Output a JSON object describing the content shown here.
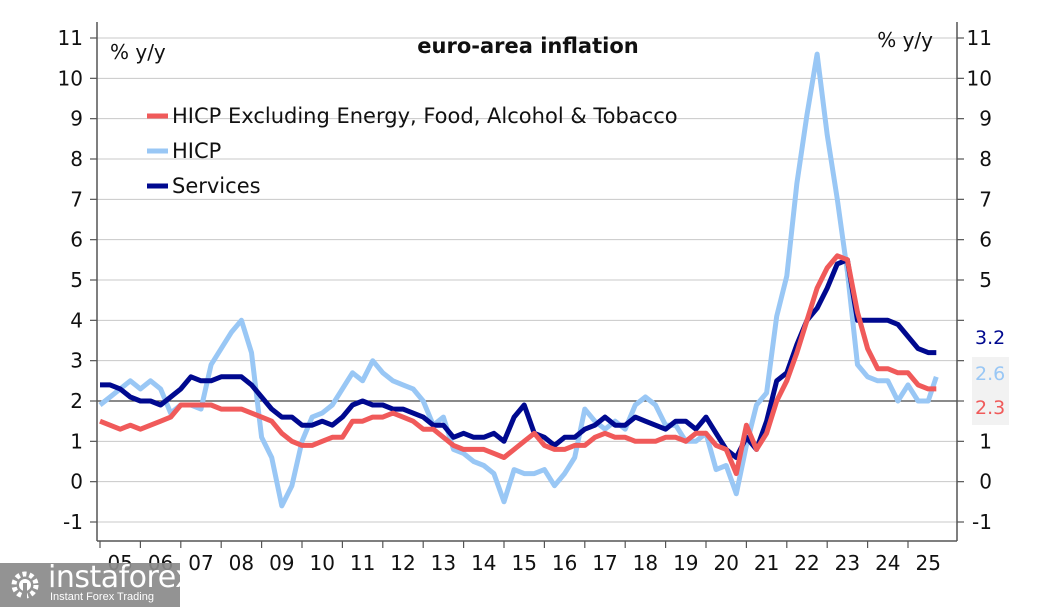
{
  "chart_data": {
    "type": "line",
    "title": "euro-area inflation",
    "ylabel_left": "% y/y",
    "ylabel_right": "% y/y",
    "ylim": [
      -1,
      11
    ],
    "yticks": [
      "-1",
      "0",
      "1",
      "2",
      "3",
      "4",
      "5",
      "6",
      "7",
      "8",
      "9",
      "10",
      "11"
    ],
    "xticks": [
      "05",
      "06",
      "07",
      "08",
      "09",
      "10",
      "11",
      "12",
      "13",
      "14",
      "15",
      "16",
      "17",
      "18",
      "19",
      "20",
      "21",
      "22",
      "23",
      "24",
      "25"
    ],
    "xrange": [
      2005.0,
      2025.75
    ],
    "reference_line": 2,
    "grid": true,
    "legend_position": "top-left",
    "series": [
      {
        "name": "HICP Excluding Energy, Food, Alcohol & Tobacco",
        "color": "#f05a5a",
        "end_label": "2.3",
        "x": [
          2005.0,
          2005.25,
          2005.5,
          2005.75,
          2006.0,
          2006.25,
          2006.5,
          2006.75,
          2007.0,
          2007.25,
          2007.5,
          2007.75,
          2008.0,
          2008.25,
          2008.5,
          2008.75,
          2009.0,
          2009.25,
          2009.5,
          2009.75,
          2010.0,
          2010.25,
          2010.5,
          2010.75,
          2011.0,
          2011.25,
          2011.5,
          2011.75,
          2012.0,
          2012.25,
          2012.5,
          2012.75,
          2013.0,
          2013.25,
          2013.5,
          2013.75,
          2014.0,
          2014.25,
          2014.5,
          2014.75,
          2015.0,
          2015.25,
          2015.5,
          2015.75,
          2016.0,
          2016.25,
          2016.5,
          2016.75,
          2017.0,
          2017.25,
          2017.5,
          2017.75,
          2018.0,
          2018.25,
          2018.5,
          2018.75,
          2019.0,
          2019.25,
          2019.5,
          2019.75,
          2020.0,
          2020.25,
          2020.5,
          2020.75,
          2021.0,
          2021.25,
          2021.5,
          2021.75,
          2022.0,
          2022.25,
          2022.5,
          2022.75,
          2023.0,
          2023.25,
          2023.5,
          2023.75,
          2024.0,
          2024.25,
          2024.5,
          2024.75,
          2025.0,
          2025.25,
          2025.5,
          2025.7
        ],
        "values": [
          1.5,
          1.4,
          1.3,
          1.4,
          1.3,
          1.4,
          1.5,
          1.6,
          1.9,
          1.9,
          1.9,
          1.9,
          1.8,
          1.8,
          1.8,
          1.7,
          1.6,
          1.5,
          1.2,
          1.0,
          0.9,
          0.9,
          1.0,
          1.1,
          1.1,
          1.5,
          1.5,
          1.6,
          1.6,
          1.7,
          1.6,
          1.5,
          1.3,
          1.3,
          1.1,
          0.9,
          0.8,
          0.8,
          0.8,
          0.7,
          0.6,
          0.8,
          1.0,
          1.2,
          0.9,
          0.8,
          0.8,
          0.9,
          0.9,
          1.1,
          1.2,
          1.1,
          1.1,
          1.0,
          1.0,
          1.0,
          1.1,
          1.1,
          1.0,
          1.2,
          1.2,
          0.9,
          0.8,
          0.2,
          1.4,
          0.8,
          1.2,
          2.0,
          2.5,
          3.2,
          4.0,
          4.8,
          5.3,
          5.6,
          5.5,
          4.2,
          3.3,
          2.8,
          2.8,
          2.7,
          2.7,
          2.4,
          2.3,
          2.3
        ]
      },
      {
        "name": "HICP",
        "color": "#99c7f5",
        "end_label": "2.6",
        "x": [
          2005.0,
          2005.25,
          2005.5,
          2005.75,
          2006.0,
          2006.25,
          2006.5,
          2006.75,
          2007.0,
          2007.25,
          2007.5,
          2007.75,
          2008.0,
          2008.25,
          2008.5,
          2008.75,
          2009.0,
          2009.25,
          2009.5,
          2009.75,
          2010.0,
          2010.25,
          2010.5,
          2010.75,
          2011.0,
          2011.25,
          2011.5,
          2011.75,
          2012.0,
          2012.25,
          2012.5,
          2012.75,
          2013.0,
          2013.25,
          2013.5,
          2013.75,
          2014.0,
          2014.25,
          2014.5,
          2014.75,
          2015.0,
          2015.25,
          2015.5,
          2015.75,
          2016.0,
          2016.25,
          2016.5,
          2016.75,
          2017.0,
          2017.25,
          2017.5,
          2017.75,
          2018.0,
          2018.25,
          2018.5,
          2018.75,
          2019.0,
          2019.25,
          2019.5,
          2019.75,
          2020.0,
          2020.25,
          2020.5,
          2020.75,
          2021.0,
          2021.25,
          2021.5,
          2021.75,
          2022.0,
          2022.25,
          2022.5,
          2022.75,
          2023.0,
          2023.25,
          2023.5,
          2023.75,
          2024.0,
          2024.25,
          2024.5,
          2024.75,
          2025.0,
          2025.25,
          2025.5,
          2025.7
        ],
        "values": [
          1.9,
          2.1,
          2.3,
          2.5,
          2.3,
          2.5,
          2.3,
          1.7,
          1.9,
          1.9,
          1.8,
          2.9,
          3.3,
          3.7,
          4.0,
          3.2,
          1.1,
          0.6,
          -0.6,
          -0.1,
          1.0,
          1.6,
          1.7,
          1.9,
          2.3,
          2.7,
          2.5,
          3.0,
          2.7,
          2.5,
          2.4,
          2.3,
          2.0,
          1.4,
          1.6,
          0.8,
          0.7,
          0.5,
          0.4,
          0.2,
          -0.5,
          0.3,
          0.2,
          0.2,
          0.3,
          -0.1,
          0.2,
          0.6,
          1.8,
          1.5,
          1.3,
          1.5,
          1.3,
          1.9,
          2.1,
          1.9,
          1.4,
          1.4,
          1.0,
          1.0,
          1.2,
          0.3,
          0.4,
          -0.3,
          0.9,
          1.9,
          2.2,
          4.1,
          5.1,
          7.4,
          9.1,
          10.6,
          8.6,
          7.0,
          5.2,
          2.9,
          2.6,
          2.5,
          2.5,
          2.0,
          2.4,
          2.0,
          2.0,
          2.6
        ]
      },
      {
        "name": "Services",
        "color": "#00098f",
        "end_label": "3.2",
        "x": [
          2005.0,
          2005.25,
          2005.5,
          2005.75,
          2006.0,
          2006.25,
          2006.5,
          2006.75,
          2007.0,
          2007.25,
          2007.5,
          2007.75,
          2008.0,
          2008.25,
          2008.5,
          2008.75,
          2009.0,
          2009.25,
          2009.5,
          2009.75,
          2010.0,
          2010.25,
          2010.5,
          2010.75,
          2011.0,
          2011.25,
          2011.5,
          2011.75,
          2012.0,
          2012.25,
          2012.5,
          2012.75,
          2013.0,
          2013.25,
          2013.5,
          2013.75,
          2014.0,
          2014.25,
          2014.5,
          2014.75,
          2015.0,
          2015.25,
          2015.5,
          2015.75,
          2016.0,
          2016.25,
          2016.5,
          2016.75,
          2017.0,
          2017.25,
          2017.5,
          2017.75,
          2018.0,
          2018.25,
          2018.5,
          2018.75,
          2019.0,
          2019.25,
          2019.5,
          2019.75,
          2020.0,
          2020.25,
          2020.5,
          2020.75,
          2021.0,
          2021.25,
          2021.5,
          2021.75,
          2022.0,
          2022.25,
          2022.5,
          2022.75,
          2023.0,
          2023.25,
          2023.5,
          2023.75,
          2024.0,
          2024.25,
          2024.5,
          2024.75,
          2025.0,
          2025.25,
          2025.5,
          2025.7
        ],
        "values": [
          2.4,
          2.4,
          2.3,
          2.1,
          2.0,
          2.0,
          1.9,
          2.1,
          2.3,
          2.6,
          2.5,
          2.5,
          2.6,
          2.6,
          2.6,
          2.4,
          2.1,
          1.8,
          1.6,
          1.6,
          1.4,
          1.4,
          1.5,
          1.4,
          1.6,
          1.9,
          2.0,
          1.9,
          1.9,
          1.8,
          1.8,
          1.7,
          1.6,
          1.4,
          1.4,
          1.1,
          1.2,
          1.1,
          1.1,
          1.2,
          1.0,
          1.6,
          1.9,
          1.2,
          1.1,
          0.9,
          1.1,
          1.1,
          1.3,
          1.4,
          1.6,
          1.4,
          1.4,
          1.6,
          1.5,
          1.4,
          1.3,
          1.5,
          1.5,
          1.3,
          1.6,
          1.2,
          0.8,
          0.6,
          1.1,
          0.8,
          1.5,
          2.5,
          2.7,
          3.4,
          4.0,
          4.3,
          4.8,
          5.4,
          5.5,
          4.0,
          4.0,
          4.0,
          4.0,
          3.9,
          3.6,
          3.3,
          3.2,
          3.2
        ]
      }
    ]
  },
  "watermark": {
    "brand": "instaforex",
    "tagline": "Instant Forex Trading"
  }
}
